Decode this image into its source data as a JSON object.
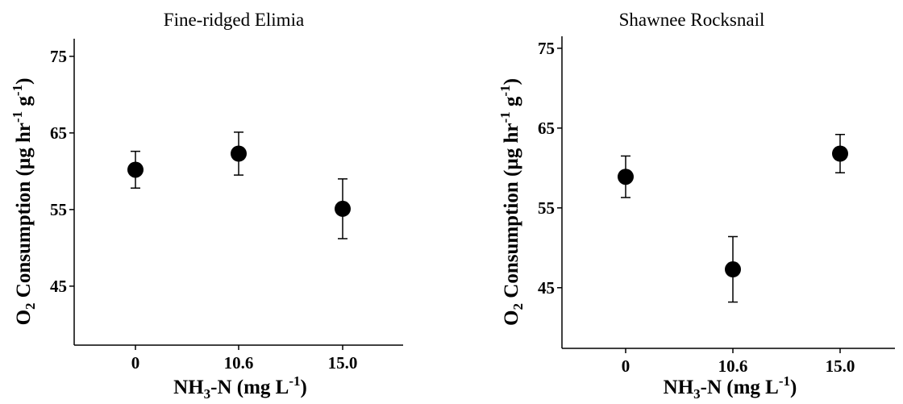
{
  "chart_data": [
    {
      "type": "errorpoint",
      "title": "Fine-ridged Elimia",
      "xlabel": [
        "NH",
        "3",
        "-N (mg L",
        "-1",
        ")"
      ],
      "ylabel": [
        "O",
        "2",
        " Consumption (µg hr",
        "-1",
        " g",
        "-1",
        ")"
      ],
      "categories": [
        "0",
        "10.6",
        "15.0"
      ],
      "values": [
        60.2,
        62.3,
        55.1
      ],
      "errors": [
        2.4,
        2.8,
        3.9
      ],
      "color": "#000000",
      "ylim": [
        37.3,
        77.3
      ],
      "yticks": [
        45,
        55,
        65,
        75
      ]
    },
    {
      "type": "errorpoint",
      "title": "Shawnee Rocksnail",
      "xlabel": [
        "NH",
        "3",
        "-N (mg L",
        "-1",
        ")"
      ],
      "ylabel": [
        "O",
        "2",
        " Consumption (µg hr",
        "-1",
        " g",
        "-1",
        ")"
      ],
      "categories": [
        "0",
        "10.6",
        "15.0"
      ],
      "values": [
        58.9,
        47.3,
        61.8
      ],
      "errors": [
        2.6,
        4.1,
        2.4
      ],
      "color": "#000000",
      "ylim": [
        37.4,
        76.5
      ],
      "yticks": [
        45,
        55,
        65,
        75
      ]
    }
  ]
}
